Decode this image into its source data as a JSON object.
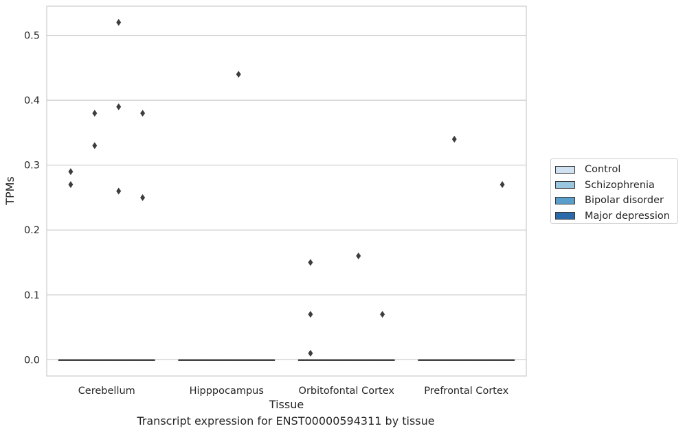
{
  "chart_data": {
    "type": "box",
    "title": "",
    "caption": "Transcript expression for ENST00000594311 by tissue",
    "xlabel": "Tissue",
    "ylabel": "TPMs",
    "ylim": [
      -0.025,
      0.545
    ],
    "yticks": [
      0.0,
      0.1,
      0.2,
      0.3,
      0.4,
      0.5
    ],
    "ytick_labels": [
      "0.0",
      "0.1",
      "0.2",
      "0.3",
      "0.4",
      "0.5"
    ],
    "grid": "horizontal",
    "legend_position": "right",
    "categories": [
      "Cerebellum",
      "Hipppocampus",
      "Orbitofontal Cortex",
      "Prefrontal Cortex"
    ],
    "series": [
      {
        "name": "Control",
        "color": "#d0e2f2",
        "boxes": [
          [
            0,
            0,
            0,
            0,
            0
          ],
          [
            0,
            0,
            0,
            0,
            0
          ],
          [
            0,
            0,
            0,
            0,
            0
          ],
          [
            0,
            0,
            0,
            0,
            0
          ]
        ],
        "outliers": [
          [
            0.27,
            0.29
          ],
          [],
          [
            0.01,
            0.07,
            0.15
          ],
          []
        ]
      },
      {
        "name": "Schizophrenia",
        "color": "#9ac7e0",
        "boxes": [
          [
            0,
            0,
            0,
            0,
            0
          ],
          [
            0,
            0,
            0,
            0,
            0
          ],
          [
            0,
            0,
            0,
            0,
            0
          ],
          [
            0,
            0,
            0,
            0,
            0
          ]
        ],
        "outliers": [
          [
            0.33,
            0.38
          ],
          [],
          [],
          [
            0.34
          ]
        ]
      },
      {
        "name": "Bipolar disorder",
        "color": "#5a9ecc",
        "boxes": [
          [
            0,
            0,
            0,
            0,
            0
          ],
          [
            0,
            0,
            0,
            0,
            0
          ],
          [
            0,
            0,
            0,
            0,
            0
          ],
          [
            0,
            0,
            0,
            0,
            0
          ]
        ],
        "outliers": [
          [
            0.26,
            0.39,
            0.52
          ],
          [
            0.44
          ],
          [
            0.16
          ],
          []
        ]
      },
      {
        "name": "Major depression",
        "color": "#2b6aa8",
        "boxes": [
          [
            0,
            0,
            0,
            0,
            0
          ],
          [
            0,
            0,
            0,
            0,
            0
          ],
          [
            0,
            0,
            0,
            0,
            0
          ],
          [
            0,
            0,
            0,
            0,
            0
          ]
        ],
        "outliers": [
          [
            0.25,
            0.38
          ],
          [],
          [
            0.07
          ],
          [
            0.27
          ]
        ]
      }
    ]
  }
}
